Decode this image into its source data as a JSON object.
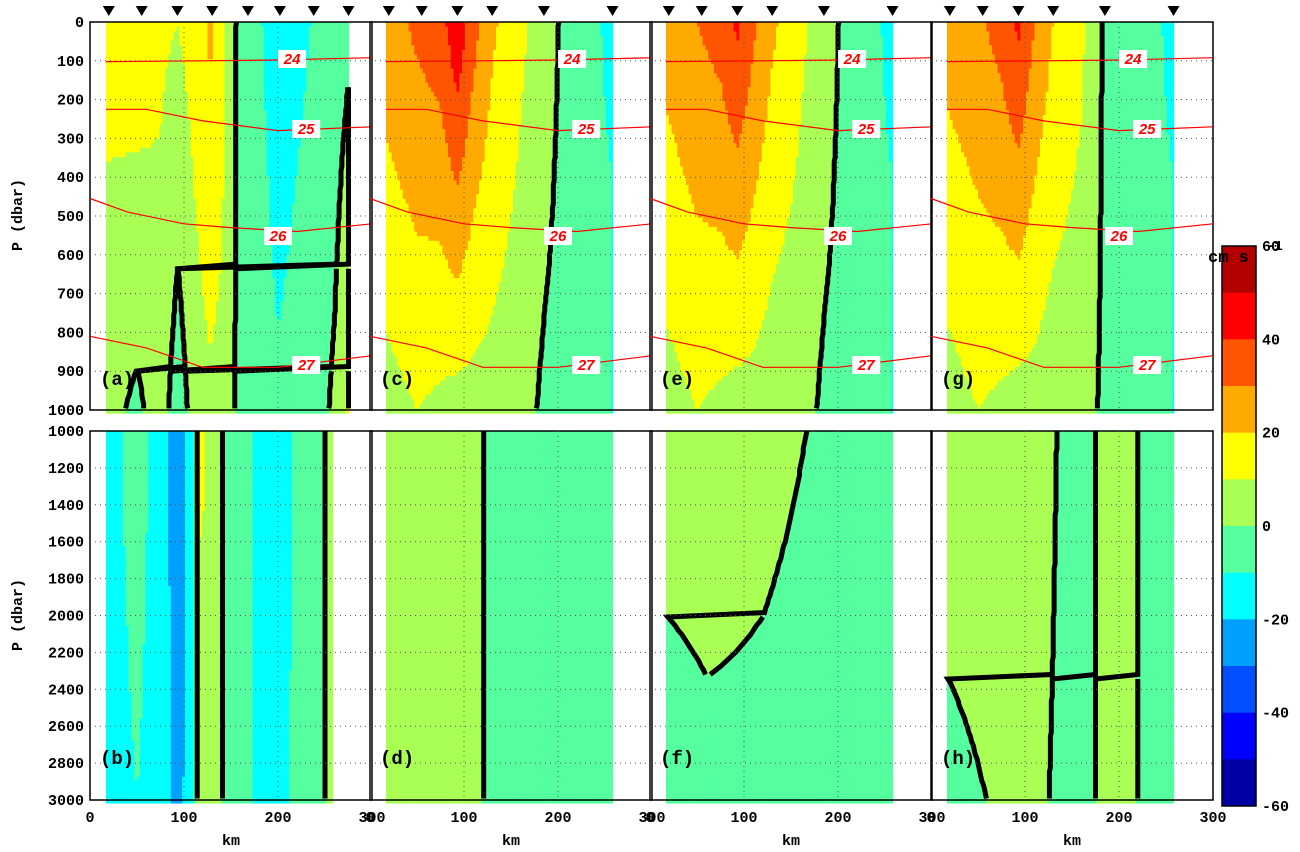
{
  "chart_data": {
    "type": "contour",
    "units": {
      "base": "cm s",
      "exponent": "-1"
    },
    "colorbar": {
      "levels": [
        -60,
        -50,
        -40,
        -30,
        -20,
        -10,
        0,
        10,
        20,
        30,
        40,
        50,
        60
      ],
      "colors": [
        "#0000a5",
        "#0000ff",
        "#0050ff",
        "#00a0ff",
        "#00ffff",
        "#55ff9f",
        "#aaff55",
        "#ffff00",
        "#ffaa00",
        "#ff5500",
        "#ff0000",
        "#b30000"
      ],
      "tick_labels": [
        "60",
        "40",
        "20",
        "0",
        "-20",
        "-40",
        "-60"
      ]
    },
    "x_axis": {
      "label": "km",
      "range": [
        0,
        300
      ],
      "tick_labels": [
        "0",
        "100",
        "200",
        "300"
      ]
    },
    "top_rows": {
      "ylabel": "P (dbar)",
      "yrange": [
        0,
        1000
      ],
      "tick_labels": [
        "0",
        "100",
        "200",
        "300",
        "400",
        "500",
        "600",
        "700",
        "800",
        "900",
        "1000"
      ]
    },
    "bottom_rows": {
      "ylabel": "P (dbar)",
      "yrange": [
        1000,
        3000
      ],
      "tick_labels": [
        "1000",
        "1200",
        "1400",
        "1600",
        "1800",
        "2000",
        "2200",
        "2400",
        "2600",
        "2800",
        "3000"
      ]
    },
    "isopycnal_labels": [
      "24",
      "25",
      "26",
      "27"
    ],
    "panels": [
      {
        "label": "(a)",
        "row": "top",
        "col": 0,
        "stations_km": [
          20,
          55,
          93,
          130,
          168,
          202,
          238,
          275
        ],
        "xrange_km": [
          17,
          275
        ]
      },
      {
        "label": "(b)",
        "row": "bottom",
        "col": 0,
        "xrange_km": [
          17,
          258
        ]
      },
      {
        "label": "(c)",
        "row": "top",
        "col": 1,
        "stations_km": [
          20,
          55,
          93,
          130,
          185,
          258
        ],
        "xrange_km": [
          17,
          258
        ]
      },
      {
        "label": "(d)",
        "row": "bottom",
        "col": 1,
        "xrange_km": [
          17,
          258
        ]
      },
      {
        "label": "(e)",
        "row": "top",
        "col": 2,
        "stations_km": [
          20,
          55,
          93,
          130,
          185,
          258
        ],
        "xrange_km": [
          17,
          258
        ]
      },
      {
        "label": "(f)",
        "row": "bottom",
        "col": 2,
        "xrange_km": [
          17,
          258
        ]
      },
      {
        "label": "(g)",
        "row": "top",
        "col": 3,
        "stations_km": [
          20,
          55,
          93,
          130,
          185,
          258
        ],
        "xrange_km": [
          17,
          258
        ]
      },
      {
        "label": "(h)",
        "row": "bottom",
        "col": 3,
        "xrange_km": [
          17,
          258
        ]
      }
    ]
  }
}
